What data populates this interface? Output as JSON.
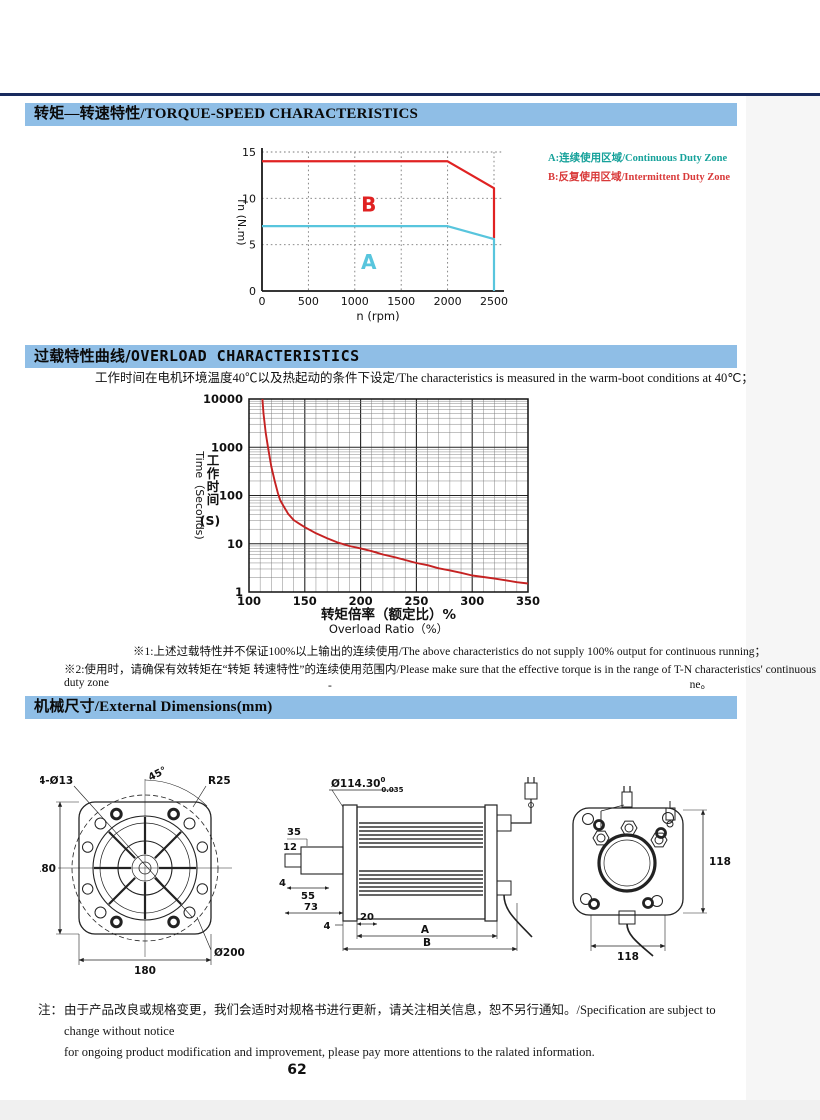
{
  "sections": {
    "torque_speed": {
      "title": "转矩—转速特性/TORQUE-SPEED CHARACTERISTICS",
      "legend": [
        {
          "id": "A",
          "label": "A:连续使用区域/Continuous Duty Zone",
          "color": "#17a29b"
        },
        {
          "id": "B",
          "label": "B:反复使用区域/Intermittent Duty Zone",
          "color": "#d93a3a"
        }
      ]
    },
    "overload": {
      "title_zh": "过载特性曲线/",
      "title_en": "OVERLOAD CHARACTERISTICS",
      "subtitle": "工作时间在电机环境温度40℃以及热起动的条件下设定/The characteristics is measured in the warm-boot conditions at 40℃；",
      "note1": "※1:上述过载特性并不保证100%以上输出的连续使用/The above characteristics do not supply 100% output for continuous running；",
      "note2": "※2:使用时，请确保有效转矩在“转矩 转速特性”的连续使用范围内/Please make sure that the effective torque is in the range of T-N characteristics' continuous duty zone",
      "note2_overflow": "ne。",
      "stray_dash": "-"
    },
    "dimensions": {
      "title": "机械尺寸/External Dimensions(mm)",
      "front_view": {
        "holes": "4-Ø13",
        "angle": "45°",
        "radius": "R25",
        "height": "180",
        "width": "180",
        "outer_dia": "Ø200"
      },
      "side_view": {
        "dia": "Ø114.30",
        "tol_upper": "0",
        "tol_lower": "0.035",
        "d35": "35",
        "d12": "12",
        "d4a": "4",
        "d55": "55",
        "d73": "73",
        "d4b": "4",
        "d20": "20",
        "len_a": "A",
        "len_b": "B"
      },
      "rear_view": {
        "height": "118",
        "width": "118"
      }
    }
  },
  "footer": {
    "label": "注：",
    "line1": "由于产品改良或规格变更，我们会适时对规格书进行更新，请关注相关信息，恕不另行通知。/Specification are subject to change without notice",
    "line2": "for ongoing product modification and improvement, please pay more attentions to the ralated information.",
    "page_number": "62"
  },
  "chart_data": [
    {
      "type": "line",
      "title": "TORQUE-SPEED CHARACTERISTICS",
      "xlabel": "n (rpm)",
      "ylabel": "Tn (N.m)",
      "xlim": [
        0,
        2500
      ],
      "ylim": [
        0,
        15
      ],
      "xticks": [
        0,
        500,
        1000,
        1500,
        2000,
        2500
      ],
      "yticks": [
        0,
        5,
        10,
        15
      ],
      "grid": "dotted",
      "series": [
        {
          "name": "B",
          "zone": "Intermittent Duty Zone",
          "color": "#e02222",
          "points": [
            [
              0,
              14
            ],
            [
              2000,
              14
            ],
            [
              2500,
              11.1
            ],
            [
              2500,
              5.7
            ]
          ],
          "label_pos": [
            1150,
            8.6
          ]
        },
        {
          "name": "A",
          "zone": "Continuous Duty Zone",
          "color": "#58c5dd",
          "points": [
            [
              0,
              7
            ],
            [
              2000,
              7
            ],
            [
              2500,
              5.6
            ],
            [
              2500,
              0
            ]
          ],
          "label_pos": [
            1150,
            2.4
          ]
        }
      ]
    },
    {
      "type": "line",
      "title": "OVERLOAD CHARACTERISTICS",
      "xlabel_zh": "转矩倍率（额定比）%",
      "xlabel_en": "Overload Ratio（%）",
      "ylabel_en": "Time（Seconds)",
      "ylabel_zh": "工作时间",
      "ylabel_unit": "(S)",
      "xlim": [
        100,
        350
      ],
      "ylim": [
        1,
        10000
      ],
      "yscale": "log",
      "xticks": [
        100,
        150,
        200,
        250,
        300,
        350
      ],
      "yticks": [
        1,
        10,
        100,
        1000,
        10000
      ],
      "grid": "log-minor",
      "series": [
        {
          "name": "overload-limit",
          "color": "#c52222",
          "points": [
            [
              112,
              10000
            ],
            [
              113,
              5000
            ],
            [
              115,
              2000
            ],
            [
              117,
              1000
            ],
            [
              120,
              400
            ],
            [
              123,
              200
            ],
            [
              126,
              110
            ],
            [
              128,
              80
            ],
            [
              131,
              60
            ],
            [
              135,
              42
            ],
            [
              140,
              31
            ],
            [
              145,
              26
            ],
            [
              150,
              22
            ],
            [
              160,
              16.5
            ],
            [
              170,
              13
            ],
            [
              180,
              10.5
            ],
            [
              190,
              9
            ],
            [
              200,
              8
            ],
            [
              210,
              7
            ],
            [
              220,
              6
            ],
            [
              230,
              5.3
            ],
            [
              240,
              4.6
            ],
            [
              250,
              4
            ],
            [
              260,
              3.6
            ],
            [
              270,
              3.1
            ],
            [
              280,
              2.8
            ],
            [
              290,
              2.5
            ],
            [
              300,
              2.2
            ],
            [
              310,
              2.05
            ],
            [
              320,
              1.9
            ],
            [
              330,
              1.75
            ],
            [
              340,
              1.6
            ],
            [
              350,
              1.5
            ]
          ]
        }
      ]
    }
  ]
}
